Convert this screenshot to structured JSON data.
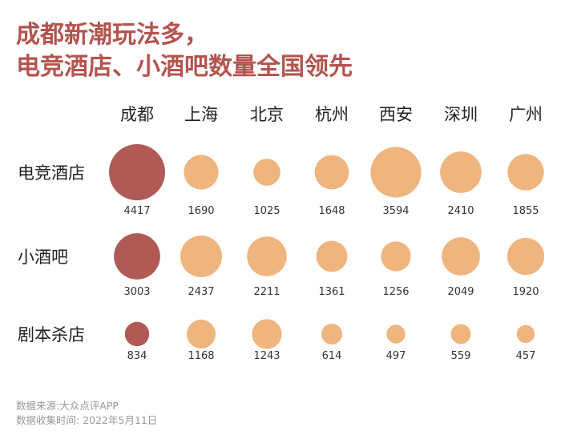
{
  "title": {
    "line1": "成都新潮玩法多，",
    "line2": "电竞酒店、小酒吧数量全国领先"
  },
  "colors": {
    "title": "#b4544e",
    "highlight": "#b05a56",
    "default": "#efb57e"
  },
  "chart_data": {
    "type": "bubble-grid",
    "columns": [
      "成都",
      "上海",
      "北京",
      "杭州",
      "西安",
      "深圳",
      "广州"
    ],
    "rows": [
      {
        "name": "电竞酒店",
        "values": [
          4417,
          1690,
          1025,
          1648,
          3594,
          2410,
          1855
        ]
      },
      {
        "name": "小酒吧",
        "values": [
          3003,
          2437,
          2211,
          1361,
          1256,
          2049,
          1920
        ]
      },
      {
        "name": "剧本杀店",
        "values": [
          834,
          1168,
          1243,
          614,
          497,
          559,
          457
        ]
      }
    ],
    "highlight_column": "成都"
  },
  "footer": {
    "source": "数据来源:大众点评APP",
    "date": "数据收集时间: 2022年5月11日"
  }
}
